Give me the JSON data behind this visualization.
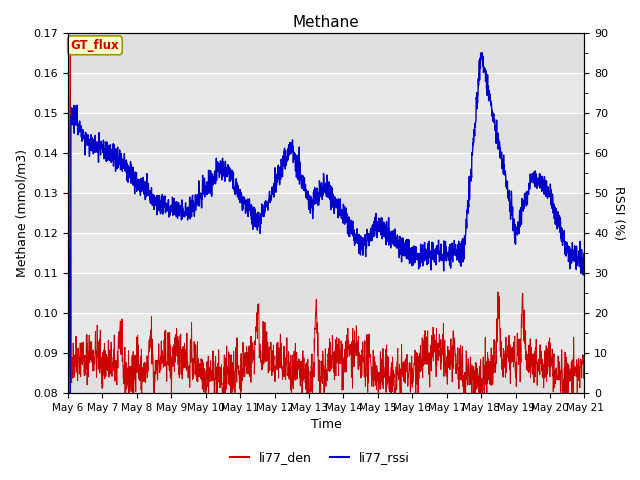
{
  "title": "Methane",
  "xlabel": "Time",
  "ylabel_left": "Methane (mmol/m3)",
  "ylabel_right": "RSSI (%)",
  "ylim_left": [
    0.08,
    0.17
  ],
  "ylim_right": [
    0,
    90
  ],
  "yticks_left": [
    0.08,
    0.09,
    0.1,
    0.11,
    0.12,
    0.13,
    0.14,
    0.15,
    0.16,
    0.17
  ],
  "yticks_right": [
    0,
    10,
    20,
    30,
    40,
    50,
    60,
    70,
    80,
    90
  ],
  "xtick_labels": [
    "May 6",
    "May 7",
    "May 8",
    "May 9",
    "May 10",
    "May 11",
    "May 12",
    "May 13",
    "May 14",
    "May 15",
    "May 16",
    "May 17",
    "May 18",
    "May 19",
    "May 20",
    "May 21"
  ],
  "annotation_text": "GT_flux",
  "annotation_color": "#cc0000",
  "annotation_bg": "#ffffcc",
  "annotation_border": "#999900",
  "line_den_color": "#cc0000",
  "line_rssi_color": "#0000cc",
  "legend_den": "li77_den",
  "legend_rssi": "li77_rssi",
  "plot_bg": "#e8e8e8",
  "grid_color": "#ffffff",
  "band_colors": [
    "#e0e0e0",
    "#d0d0d0"
  ]
}
